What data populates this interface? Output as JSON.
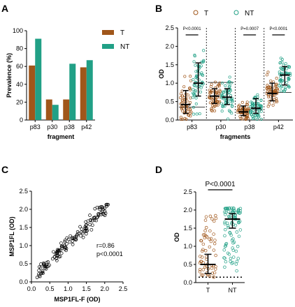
{
  "colors": {
    "T": "#a0561a",
    "NT": "#21a086",
    "axis": "#000000"
  },
  "chart_data": [
    {
      "panel": "A",
      "type": "bar",
      "xlabel": "fragment",
      "ylabel": "Prevalence (%)",
      "ylim": [
        0,
        100
      ],
      "yticks": [
        "0",
        "20",
        "40",
        "60",
        "80",
        "100"
      ],
      "categories": [
        "p83",
        "p30",
        "p38",
        "p42"
      ],
      "series": [
        {
          "name": "T",
          "values": [
            61,
            23,
            23,
            59
          ]
        },
        {
          "name": "NT",
          "values": [
            91,
            17,
            63,
            67
          ]
        }
      ],
      "legend": "right"
    },
    {
      "panel": "B",
      "type": "scatter",
      "xlabel": "fragments",
      "ylabel": "OD",
      "ylim": [
        0,
        2.5
      ],
      "yticks": [
        "0.0",
        "0.5",
        "1.0",
        "1.5",
        "2.0",
        "2.5"
      ],
      "categories": [
        "p83",
        "p30",
        "p38",
        "p42"
      ],
      "legend": "top",
      "series": [
        {
          "name": "T",
          "medians": [
            0.42,
            0.65,
            0.22,
            0.72
          ],
          "iqr": [
            [
              0.18,
              0.8
            ],
            [
              0.45,
              0.85
            ],
            [
              0.12,
              0.38
            ],
            [
              0.52,
              1.0
            ]
          ]
        },
        {
          "name": "NT",
          "medians": [
            1.0,
            0.62,
            0.32,
            1.22
          ],
          "iqr": [
            [
              0.65,
              1.55
            ],
            [
              0.42,
              0.85
            ],
            [
              0.18,
              0.58
            ],
            [
              0.95,
              1.45
            ]
          ]
        }
      ],
      "cutoffs": [
        0.35,
        1.02,
        0.28,
        0.75
      ],
      "pvalues": [
        "P<0.0001",
        "",
        "P=0.0007",
        "P<0.0001"
      ]
    },
    {
      "panel": "C",
      "type": "scatter",
      "xlabel": "MSP1FL-F (OD)",
      "ylabel": "MSP1FL (OD)",
      "xlim": [
        0,
        2.5
      ],
      "ylim": [
        0,
        2.5
      ],
      "xticks": [
        "0.0",
        "0.5",
        "1.0",
        "1.5",
        "2.0",
        "2.5"
      ],
      "yticks": [
        "0.0",
        "0.5",
        "1.0",
        "1.5",
        "2.0",
        "2.5"
      ],
      "r": "r=0.86",
      "p": "p<0.0001"
    },
    {
      "panel": "D",
      "type": "scatter",
      "xlabel": "",
      "ylabel": "OD",
      "ylim": [
        0,
        2.5
      ],
      "yticks": [
        "0.0",
        "0.5",
        "1.0",
        "1.5",
        "2.0",
        "2.5"
      ],
      "categories": [
        "T",
        "NT"
      ],
      "series": [
        {
          "name": "T",
          "median": 0.5,
          "iqr": [
            0.25,
            0.78
          ]
        },
        {
          "name": "NT",
          "median": 1.75,
          "iqr": [
            1.5,
            1.9
          ]
        }
      ],
      "cutoff": 0.15,
      "pvalue": "P<0.0001"
    }
  ]
}
